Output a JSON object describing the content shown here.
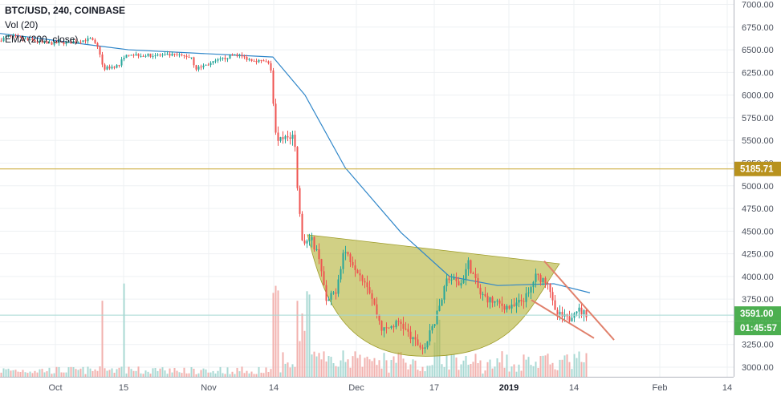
{
  "legend": {
    "symbol": "BTC/USD, 240, COINBASE",
    "volume": "Vol (20)",
    "ema": "EMA (200, close)"
  },
  "chart_data": {
    "type": "candlestick",
    "y_ticks": [
      "7000.00",
      "6750.00",
      "6500.00",
      "6250.00",
      "6000.00",
      "5750.00",
      "5500.00",
      "5250.00",
      "5000.00",
      "4750.00",
      "4500.00",
      "4250.00",
      "4000.00",
      "3750.00",
      "3500.00",
      "3250.00",
      "3000.00"
    ],
    "x_ticks": [
      "Oct",
      "15",
      "Nov",
      "14",
      "Dec",
      "17",
      "2019",
      "14",
      "Feb",
      "14"
    ],
    "ylim": [
      2970,
      7020
    ],
    "price_path": [
      {
        "t": 0,
        "p": 6600
      },
      {
        "t": 12,
        "p": 6650
      },
      {
        "t": 30,
        "p": 6620
      },
      {
        "t": 60,
        "p": 6570
      },
      {
        "t": 90,
        "p": 6580
      },
      {
        "t": 115,
        "p": 6620
      },
      {
        "t": 125,
        "p": 6500
      },
      {
        "t": 130,
        "p": 6290
      },
      {
        "t": 150,
        "p": 6330
      },
      {
        "t": 158,
        "p": 6460
      },
      {
        "t": 180,
        "p": 6440
      },
      {
        "t": 220,
        "p": 6440
      },
      {
        "t": 240,
        "p": 6420
      },
      {
        "t": 245,
        "p": 6290
      },
      {
        "t": 270,
        "p": 6370
      },
      {
        "t": 295,
        "p": 6450
      },
      {
        "t": 310,
        "p": 6400
      },
      {
        "t": 335,
        "p": 6360
      },
      {
        "t": 340,
        "p": 6260
      },
      {
        "t": 344,
        "p": 5550
      },
      {
        "t": 352,
        "p": 5500
      },
      {
        "t": 368,
        "p": 5560
      },
      {
        "t": 372,
        "p": 5000
      },
      {
        "t": 378,
        "p": 4400
      },
      {
        "t": 390,
        "p": 4400
      },
      {
        "t": 400,
        "p": 4200
      },
      {
        "t": 408,
        "p": 3700
      },
      {
        "t": 420,
        "p": 3850
      },
      {
        "t": 430,
        "p": 4300
      },
      {
        "t": 445,
        "p": 4100
      },
      {
        "t": 460,
        "p": 3900
      },
      {
        "t": 478,
        "p": 3400
      },
      {
        "t": 500,
        "p": 3500
      },
      {
        "t": 515,
        "p": 3300
      },
      {
        "t": 530,
        "p": 3200
      },
      {
        "t": 545,
        "p": 3550
      },
      {
        "t": 560,
        "p": 4000
      },
      {
        "t": 575,
        "p": 3900
      },
      {
        "t": 585,
        "p": 4150
      },
      {
        "t": 600,
        "p": 3800
      },
      {
        "t": 620,
        "p": 3700
      },
      {
        "t": 640,
        "p": 3650
      },
      {
        "t": 660,
        "p": 3800
      },
      {
        "t": 668,
        "p": 4000
      },
      {
        "t": 685,
        "p": 3950
      },
      {
        "t": 692,
        "p": 3600
      },
      {
        "t": 710,
        "p": 3520
      },
      {
        "t": 718,
        "p": 3650
      },
      {
        "t": 730,
        "p": 3591
      }
    ],
    "ema_path": [
      {
        "t": 0,
        "p": 6680
      },
      {
        "t": 160,
        "p": 6500
      },
      {
        "t": 340,
        "p": 6420
      },
      {
        "t": 380,
        "p": 6000
      },
      {
        "t": 430,
        "p": 5200
      },
      {
        "t": 500,
        "p": 4480
      },
      {
        "t": 560,
        "p": 4000
      },
      {
        "t": 620,
        "p": 3900
      },
      {
        "t": 690,
        "p": 3920
      },
      {
        "t": 735,
        "p": 3820
      }
    ],
    "horizontal_line": {
      "price": 5185.71,
      "color": "#c9a62f"
    },
    "current_price": {
      "price": 3591.0,
      "label": "3591.00",
      "countdown": "01:45:57",
      "color": "#4caf50"
    },
    "level_label": {
      "price": 5185.71,
      "label": "5185.71",
      "color": "#b8921e"
    },
    "cup_pattern": {
      "fill": "#b5b33a",
      "rim_start": {
        "t": 383,
        "p": 4460
      },
      "rim_end": {
        "t": 697,
        "p": 4140
      },
      "bottom": {
        "t": 530,
        "p": 3120
      }
    },
    "wedge": {
      "color": "#e0806b",
      "upper": [
        {
          "t": 678,
          "p": 4170
        },
        {
          "t": 765,
          "p": 3300
        }
      ],
      "lower": [
        {
          "t": 662,
          "p": 3740
        },
        {
          "t": 740,
          "p": 3320
        }
      ]
    },
    "colors": {
      "up": "#26a69a",
      "down": "#ef5350",
      "ema": "#2f86c9",
      "vol_up": "#a8d8d3",
      "vol_down": "#f2b1ae"
    }
  }
}
